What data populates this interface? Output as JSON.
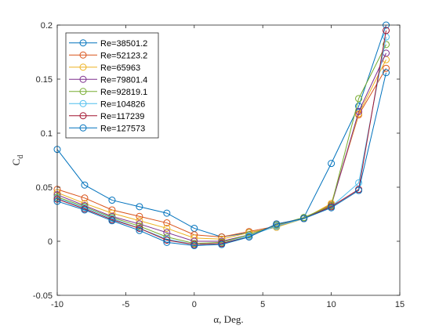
{
  "chart_data": {
    "type": "line",
    "xlabel": "α, Deg.",
    "ylabel_main": "C",
    "ylabel_sub": "d",
    "xlim": [
      -10,
      15
    ],
    "ylim": [
      -0.05,
      0.2
    ],
    "xticks": [
      -10,
      -5,
      0,
      5,
      10,
      15
    ],
    "yticks": [
      -0.05,
      0,
      0.05,
      0.1,
      0.15,
      0.2
    ],
    "xtick_labels": [
      "-10",
      "-5",
      "0",
      "5",
      "10",
      "15"
    ],
    "ytick_labels": [
      "-0.05",
      "0",
      "0.05",
      "0.1",
      "0.15",
      "0.2"
    ],
    "grid": false,
    "legend_position": "top-left",
    "x": [
      -10,
      -8,
      -6,
      -4,
      -2,
      0,
      2,
      4,
      6,
      8,
      10,
      12,
      14
    ],
    "series": [
      {
        "name": "Re=38501.2",
        "color": "#0072BD",
        "values": [
          0.085,
          0.052,
          0.038,
          0.032,
          0.026,
          0.012,
          0.004,
          0.008,
          0.013,
          0.022,
          0.072,
          0.125,
          0.2
        ]
      },
      {
        "name": "Re=52123.2",
        "color": "#D95319",
        "values": [
          0.048,
          0.04,
          0.029,
          0.023,
          0.017,
          0.006,
          0.004,
          0.009,
          0.014,
          0.021,
          0.034,
          0.117,
          0.16
        ]
      },
      {
        "name": "Re=65963",
        "color": "#EDB120",
        "values": [
          0.045,
          0.035,
          0.026,
          0.019,
          0.012,
          0.003,
          0.002,
          0.008,
          0.013,
          0.021,
          0.035,
          0.118,
          0.168
        ]
      },
      {
        "name": "Re=79801.4",
        "color": "#7E2F8E",
        "values": [
          0.043,
          0.033,
          0.023,
          0.016,
          0.008,
          0.0,
          0.0,
          0.006,
          0.015,
          0.021,
          0.033,
          0.12,
          0.174
        ]
      },
      {
        "name": "Re=92819.1",
        "color": "#77AC30",
        "values": [
          0.041,
          0.032,
          0.022,
          0.014,
          0.004,
          -0.002,
          -0.001,
          0.006,
          0.015,
          0.022,
          0.033,
          0.132,
          0.182
        ]
      },
      {
        "name": "Re=104826",
        "color": "#4DBEEE",
        "values": [
          0.04,
          0.031,
          0.021,
          0.012,
          0.002,
          -0.003,
          -0.002,
          0.005,
          0.014,
          0.021,
          0.032,
          0.054,
          0.189
        ]
      },
      {
        "name": "Re=117239",
        "color": "#A2142F",
        "values": [
          0.039,
          0.03,
          0.02,
          0.012,
          0.001,
          -0.003,
          -0.002,
          0.004,
          0.016,
          0.021,
          0.032,
          0.048,
          0.195
        ]
      },
      {
        "name": "Re=127573",
        "color": "#0072BD",
        "values": [
          0.037,
          0.029,
          0.019,
          0.01,
          -0.001,
          -0.004,
          -0.003,
          0.004,
          0.016,
          0.021,
          0.031,
          0.047,
          0.156
        ]
      }
    ]
  }
}
